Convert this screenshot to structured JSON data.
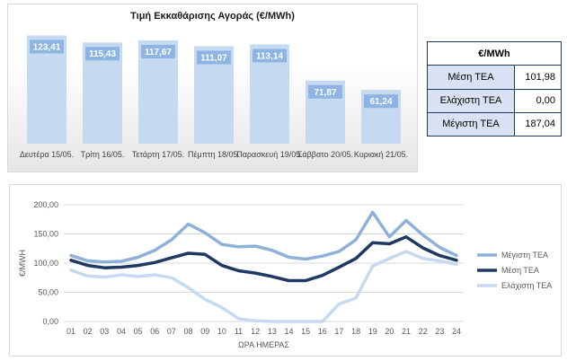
{
  "chart_data": [
    {
      "type": "bar",
      "title": "Τιμή Εκκαθάρισης Αγοράς (€/MWh)",
      "categories": [
        "Δευτέρα 15/05.",
        "Τρίτη 16/05.",
        "Τετάρτη 17/05.",
        "Πέμπτη 18/05.",
        "Παρασκευή 19/05.",
        "Σάββατο 20/05.",
        "Κυριακή 21/05."
      ],
      "values": [
        123.41,
        115.43,
        117.67,
        111.07,
        113.14,
        71.87,
        61.24
      ],
      "value_labels": [
        "123,41",
        "115,43",
        "117,67",
        "111,07",
        "113,14",
        "71,87",
        "61,24"
      ],
      "ylim": [
        0,
        130
      ],
      "grid": false,
      "colors": {
        "bar": "#c5d9f1",
        "label_bg": "#8db4e2",
        "label_text": "#ffffff"
      }
    },
    {
      "type": "line",
      "title": "",
      "xlabel": "ΩΡΑ ΗΜΕΡΑΣ",
      "ylabel": "€/MWH",
      "x": [
        "01",
        "02",
        "03",
        "04",
        "05",
        "06",
        "07",
        "08",
        "09",
        "10",
        "11",
        "12",
        "13",
        "14",
        "15",
        "16",
        "17",
        "18",
        "19",
        "20",
        "21",
        "22",
        "23",
        "24"
      ],
      "ylim": [
        0,
        200
      ],
      "yticks": [
        0,
        50,
        100,
        150,
        200
      ],
      "ytick_labels": [
        "0,00",
        "50,00",
        "100,00",
        "150,00",
        "200,00"
      ],
      "grid": true,
      "legend": "right",
      "series": [
        {
          "name": "Μέγιστη ΤΕΑ",
          "color": "#8eb0d9",
          "values": [
            113,
            104,
            102,
            103,
            110,
            122,
            140,
            167,
            152,
            132,
            128,
            129,
            122,
            110,
            107,
            112,
            120,
            140,
            187,
            145,
            173,
            148,
            127,
            113
          ]
        },
        {
          "name": "Μέση ΤΕΑ",
          "color": "#1f3864",
          "values": [
            105,
            96,
            92,
            93,
            96,
            101,
            109,
            117,
            115,
            96,
            87,
            83,
            77,
            70,
            70,
            79,
            93,
            108,
            135,
            133,
            145,
            126,
            113,
            105
          ]
        },
        {
          "name": "Ελάχιστη ΤΕΑ",
          "color": "#c6d9f1",
          "values": [
            88,
            78,
            76,
            80,
            77,
            80,
            75,
            58,
            38,
            24,
            5,
            1,
            0,
            0,
            0,
            0,
            30,
            40,
            95,
            108,
            120,
            108,
            104,
            98
          ]
        }
      ]
    }
  ],
  "stats_table": {
    "header": "€/MWh",
    "rows": [
      {
        "label": "Μέση ΤΕΑ",
        "value": "101,98"
      },
      {
        "label": "Ελάχιστη ΤΕΑ",
        "value": "0,00"
      },
      {
        "label": "Μέγιστη ΤΕΑ",
        "value": "187,04"
      }
    ]
  }
}
